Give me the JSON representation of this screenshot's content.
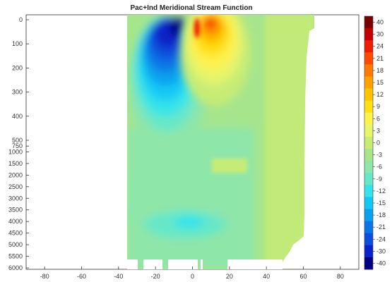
{
  "chart_data": {
    "type": "heatmap",
    "title": "Pac+Ind Meridional Stream Function",
    "xlabel": "",
    "ylabel": "",
    "x_ticks": [
      -80,
      -60,
      -40,
      -20,
      0,
      20,
      40,
      60,
      80
    ],
    "xlim": [
      -90,
      90
    ],
    "y_ticks_upper": [
      0,
      100,
      200,
      300,
      400,
      500
    ],
    "y_ticks_lower": [
      750,
      1000,
      1500,
      2000,
      2500,
      3000,
      3500,
      4000,
      4500,
      5000,
      5500,
      6000
    ],
    "ylim": [
      0,
      6000
    ],
    "y_axis_inverted": true,
    "colorbar_levels": [
      40,
      30,
      24,
      21,
      18,
      15,
      12,
      9,
      6,
      3,
      0,
      -3,
      -6,
      -9,
      -12,
      -15,
      -18,
      -21,
      -24,
      -30,
      -40
    ],
    "colorbar_colors": [
      "#7a0000",
      "#c40000",
      "#ee1c00",
      "#ff4a00",
      "#ff7a00",
      "#ffa100",
      "#ffc400",
      "#ffe014",
      "#fff14d",
      "#e6f56a",
      "#c7ec75",
      "#a6e58c",
      "#8fe6a9",
      "#66e8c8",
      "#36e3ea",
      "#14c8f4",
      "#0aa0ee",
      "#0a74e6",
      "#0d4ddc",
      "#0a22c8",
      "#000080"
    ],
    "colorbar_tick_labels": [
      "40",
      "30",
      "24",
      "21",
      "18",
      "15",
      "12",
      "9",
      "6",
      "3",
      "0",
      "-3",
      "-6",
      "-9",
      "-12",
      "-15",
      "-18",
      "-21",
      "-24",
      "-30",
      "-40"
    ],
    "features": [
      {
        "lat": -15,
        "depth": 60,
        "value": -40
      },
      {
        "lat": -10,
        "depth": 200,
        "value": -24
      },
      {
        "lat": -12,
        "depth": 350,
        "value": -12
      },
      {
        "lat": 12,
        "depth": 40,
        "value": 30
      },
      {
        "lat": 12,
        "depth": 150,
        "value": 9
      },
      {
        "lat": -3,
        "depth": 4100,
        "value": -12
      },
      {
        "lat": 0,
        "depth": 4500,
        "value": -6
      }
    ],
    "grid": false,
    "legend": "colorbar-right"
  }
}
